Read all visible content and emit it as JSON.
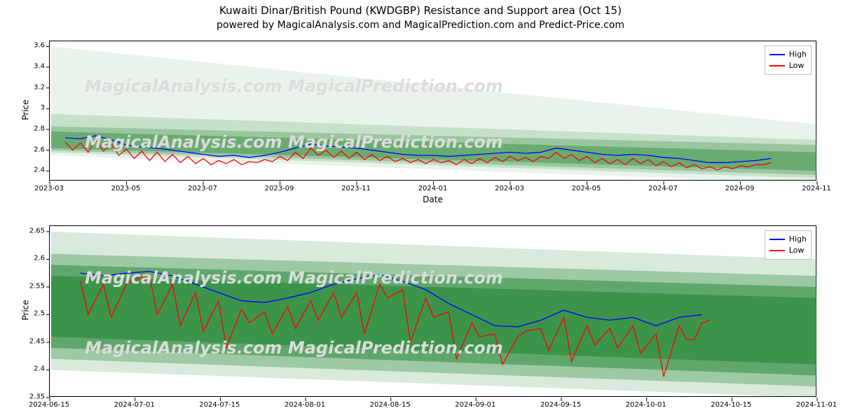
{
  "title": "Kuwaiti Dinar/British Pound (KWDGBP) Resistance and Support area (Oct 15)",
  "subtitle": "powered by MagicalAnalysis.com and MagicalPrediction.com and Predict-Price.com",
  "watermark_text": "MagicalAnalysis.com    MagicalPrediction.com",
  "colors": {
    "high": "#0000ff",
    "low": "#ff0000",
    "band_fill": "#2e8b3c",
    "band_fill_light": "#7fc88a",
    "axis": "#000000",
    "background": "#ffffff",
    "watermark": "#dcdcdc",
    "legend_border": "#bfbfbf"
  },
  "legend": {
    "high": "High",
    "low": "Low"
  },
  "panel1": {
    "type": "line+area",
    "xlabel": "Date",
    "ylabel": "Price",
    "ylim": [
      2.3,
      3.65
    ],
    "yticks": [
      2.4,
      2.6,
      2.8,
      3.0,
      3.2,
      3.4,
      3.6
    ],
    "xticks": [
      "2023-03",
      "2023-05",
      "2023-07",
      "2023-09",
      "2023-11",
      "2024-01",
      "2024-03",
      "2024-05",
      "2024-07",
      "2024-09",
      "2024-11"
    ],
    "x_domain": [
      0,
      100
    ],
    "bands": [
      {
        "opacity": 0.1,
        "top_start": 3.6,
        "top_end": 2.85,
        "bot_start": 2.55,
        "bot_end": 2.28
      },
      {
        "opacity": 0.18,
        "top_start": 2.95,
        "top_end": 2.7,
        "bot_start": 2.58,
        "bot_end": 2.33
      },
      {
        "opacity": 0.3,
        "top_start": 2.83,
        "top_end": 2.65,
        "bot_start": 2.6,
        "bot_end": 2.36
      },
      {
        "opacity": 0.45,
        "top_start": 2.78,
        "top_end": 2.58,
        "bot_start": 2.62,
        "bot_end": 2.4
      }
    ],
    "series_high": [
      [
        2,
        2.72
      ],
      [
        4,
        2.71
      ],
      [
        6,
        2.74
      ],
      [
        8,
        2.7
      ],
      [
        10,
        2.65
      ],
      [
        12,
        2.63
      ],
      [
        14,
        2.62
      ],
      [
        16,
        2.6
      ],
      [
        18,
        2.58
      ],
      [
        20,
        2.56
      ],
      [
        22,
        2.54
      ],
      [
        24,
        2.55
      ],
      [
        26,
        2.53
      ],
      [
        28,
        2.55
      ],
      [
        30,
        2.58
      ],
      [
        32,
        2.62
      ],
      [
        34,
        2.66
      ],
      [
        36,
        2.64
      ],
      [
        38,
        2.63
      ],
      [
        40,
        2.62
      ],
      [
        42,
        2.6
      ],
      [
        44,
        2.58
      ],
      [
        46,
        2.56
      ],
      [
        48,
        2.55
      ],
      [
        50,
        2.55
      ],
      [
        52,
        2.54
      ],
      [
        54,
        2.55
      ],
      [
        56,
        2.56
      ],
      [
        58,
        2.57
      ],
      [
        60,
        2.58
      ],
      [
        62,
        2.57
      ],
      [
        64,
        2.58
      ],
      [
        66,
        2.62
      ],
      [
        68,
        2.6
      ],
      [
        70,
        2.58
      ],
      [
        72,
        2.56
      ],
      [
        74,
        2.55
      ],
      [
        76,
        2.56
      ],
      [
        78,
        2.55
      ],
      [
        80,
        2.53
      ],
      [
        82,
        2.52
      ],
      [
        84,
        2.5
      ],
      [
        86,
        2.48
      ],
      [
        88,
        2.48
      ],
      [
        90,
        2.49
      ],
      [
        92,
        2.5
      ],
      [
        94,
        2.52
      ]
    ],
    "series_low": [
      [
        2,
        2.68
      ],
      [
        3,
        2.6
      ],
      [
        4,
        2.67
      ],
      [
        5,
        2.58
      ],
      [
        6,
        2.7
      ],
      [
        7,
        2.59
      ],
      [
        8,
        2.66
      ],
      [
        9,
        2.55
      ],
      [
        10,
        2.61
      ],
      [
        11,
        2.52
      ],
      [
        12,
        2.59
      ],
      [
        13,
        2.5
      ],
      [
        14,
        2.58
      ],
      [
        15,
        2.49
      ],
      [
        16,
        2.56
      ],
      [
        17,
        2.48
      ],
      [
        18,
        2.54
      ],
      [
        19,
        2.47
      ],
      [
        20,
        2.52
      ],
      [
        21,
        2.46
      ],
      [
        22,
        2.5
      ],
      [
        23,
        2.47
      ],
      [
        24,
        2.51
      ],
      [
        25,
        2.46
      ],
      [
        26,
        2.49
      ],
      [
        27,
        2.48
      ],
      [
        28,
        2.51
      ],
      [
        29,
        2.49
      ],
      [
        30,
        2.54
      ],
      [
        31,
        2.5
      ],
      [
        32,
        2.58
      ],
      [
        33,
        2.52
      ],
      [
        34,
        2.62
      ],
      [
        35,
        2.55
      ],
      [
        36,
        2.6
      ],
      [
        37,
        2.53
      ],
      [
        38,
        2.59
      ],
      [
        39,
        2.52
      ],
      [
        40,
        2.58
      ],
      [
        41,
        2.51
      ],
      [
        42,
        2.56
      ],
      [
        43,
        2.5
      ],
      [
        44,
        2.54
      ],
      [
        45,
        2.49
      ],
      [
        46,
        2.52
      ],
      [
        47,
        2.48
      ],
      [
        48,
        2.51
      ],
      [
        49,
        2.47
      ],
      [
        50,
        2.51
      ],
      [
        51,
        2.48
      ],
      [
        52,
        2.5
      ],
      [
        53,
        2.46
      ],
      [
        54,
        2.51
      ],
      [
        55,
        2.47
      ],
      [
        56,
        2.52
      ],
      [
        57,
        2.48
      ],
      [
        58,
        2.53
      ],
      [
        59,
        2.49
      ],
      [
        60,
        2.54
      ],
      [
        61,
        2.5
      ],
      [
        62,
        2.53
      ],
      [
        63,
        2.49
      ],
      [
        64,
        2.54
      ],
      [
        65,
        2.52
      ],
      [
        66,
        2.58
      ],
      [
        67,
        2.52
      ],
      [
        68,
        2.56
      ],
      [
        69,
        2.5
      ],
      [
        70,
        2.54
      ],
      [
        71,
        2.48
      ],
      [
        72,
        2.52
      ],
      [
        73,
        2.47
      ],
      [
        74,
        2.51
      ],
      [
        75,
        2.46
      ],
      [
        76,
        2.52
      ],
      [
        77,
        2.47
      ],
      [
        78,
        2.51
      ],
      [
        79,
        2.45
      ],
      [
        80,
        2.49
      ],
      [
        81,
        2.44
      ],
      [
        82,
        2.48
      ],
      [
        83,
        2.43
      ],
      [
        84,
        2.46
      ],
      [
        85,
        2.42
      ],
      [
        86,
        2.44
      ],
      [
        87,
        2.41
      ],
      [
        88,
        2.44
      ],
      [
        89,
        2.42
      ],
      [
        90,
        2.45
      ],
      [
        91,
        2.44
      ],
      [
        92,
        2.46
      ],
      [
        93,
        2.46
      ],
      [
        94,
        2.48
      ]
    ]
  },
  "panel2": {
    "type": "line+area",
    "xlabel": "",
    "ylabel": "Price",
    "ylim": [
      2.35,
      2.66
    ],
    "yticks": [
      2.35,
      2.4,
      2.45,
      2.5,
      2.55,
      2.6,
      2.65
    ],
    "xticks": [
      "2024-06-15",
      "2024-07-01",
      "2024-07-15",
      "2024-08-01",
      "2024-08-15",
      "2024-09-01",
      "2024-09-15",
      "2024-10-01",
      "2024-10-15",
      "2024-11-01"
    ],
    "x_domain": [
      0,
      100
    ],
    "bands": [
      {
        "opacity": 0.18,
        "top_start": 2.65,
        "top_end": 2.6,
        "bot_start": 2.4,
        "bot_end": 2.35
      },
      {
        "opacity": 0.35,
        "top_start": 2.61,
        "top_end": 2.57,
        "bot_start": 2.42,
        "bot_end": 2.37
      },
      {
        "opacity": 0.55,
        "top_start": 2.59,
        "top_end": 2.55,
        "bot_start": 2.44,
        "bot_end": 2.39
      },
      {
        "opacity": 0.7,
        "top_start": 2.57,
        "top_end": 2.53,
        "bot_start": 2.46,
        "bot_end": 2.41
      }
    ],
    "series_high": [
      [
        4,
        2.575
      ],
      [
        7,
        2.57
      ],
      [
        10,
        2.575
      ],
      [
        13,
        2.578
      ],
      [
        16,
        2.57
      ],
      [
        19,
        2.555
      ],
      [
        22,
        2.54
      ],
      [
        25,
        2.525
      ],
      [
        28,
        2.522
      ],
      [
        31,
        2.53
      ],
      [
        34,
        2.54
      ],
      [
        37,
        2.555
      ],
      [
        40,
        2.565
      ],
      [
        43,
        2.572
      ],
      [
        46,
        2.56
      ],
      [
        49,
        2.545
      ],
      [
        52,
        2.52
      ],
      [
        55,
        2.5
      ],
      [
        58,
        2.48
      ],
      [
        61,
        2.478
      ],
      [
        64,
        2.49
      ],
      [
        67,
        2.508
      ],
      [
        70,
        2.495
      ],
      [
        73,
        2.49
      ],
      [
        76,
        2.495
      ],
      [
        79,
        2.48
      ],
      [
        82,
        2.495
      ],
      [
        85,
        2.5
      ]
    ],
    "series_low": [
      [
        4,
        2.56
      ],
      [
        5,
        2.5
      ],
      [
        7,
        2.555
      ],
      [
        8,
        2.495
      ],
      [
        10,
        2.555
      ],
      [
        11,
        2.565
      ],
      [
        13,
        2.57
      ],
      [
        14,
        2.5
      ],
      [
        16,
        2.555
      ],
      [
        17,
        2.48
      ],
      [
        19,
        2.54
      ],
      [
        20,
        2.47
      ],
      [
        22,
        2.525
      ],
      [
        23,
        2.44
      ],
      [
        25,
        2.51
      ],
      [
        26,
        2.485
      ],
      [
        28,
        2.505
      ],
      [
        29,
        2.465
      ],
      [
        31,
        2.515
      ],
      [
        32,
        2.475
      ],
      [
        34,
        2.525
      ],
      [
        35,
        2.49
      ],
      [
        37,
        2.54
      ],
      [
        38,
        2.495
      ],
      [
        40,
        2.54
      ],
      [
        41,
        2.465
      ],
      [
        43,
        2.555
      ],
      [
        44,
        2.53
      ],
      [
        46,
        2.545
      ],
      [
        47,
        2.45
      ],
      [
        49,
        2.53
      ],
      [
        50,
        2.495
      ],
      [
        52,
        2.505
      ],
      [
        53,
        2.42
      ],
      [
        55,
        2.485
      ],
      [
        56,
        2.46
      ],
      [
        58,
        2.465
      ],
      [
        59,
        2.41
      ],
      [
        61,
        2.46
      ],
      [
        62,
        2.47
      ],
      [
        64,
        2.475
      ],
      [
        65,
        2.435
      ],
      [
        67,
        2.495
      ],
      [
        68,
        2.415
      ],
      [
        70,
        2.48
      ],
      [
        71,
        2.445
      ],
      [
        73,
        2.475
      ],
      [
        74,
        2.44
      ],
      [
        76,
        2.48
      ],
      [
        77,
        2.43
      ],
      [
        79,
        2.465
      ],
      [
        80,
        2.388
      ],
      [
        82,
        2.48
      ],
      [
        83,
        2.455
      ],
      [
        84,
        2.455
      ],
      [
        85,
        2.485
      ],
      [
        86,
        2.49
      ]
    ]
  }
}
